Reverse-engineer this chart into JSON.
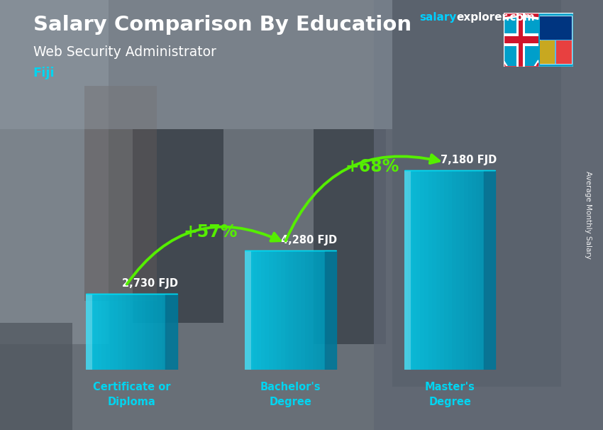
{
  "title": "Salary Comparison By Education",
  "subtitle": "Web Security Administrator",
  "country": "Fiji",
  "site_salary": "salary",
  "site_rest": "explorer.com",
  "ylabel": "Average Monthly Salary",
  "categories": [
    "Certificate or\nDiploma",
    "Bachelor's\nDegree",
    "Master's\nDegree"
  ],
  "values": [
    2730,
    4280,
    7180
  ],
  "value_labels": [
    "2,730 FJD",
    "4,280 FJD",
    "7,180 FJD"
  ],
  "pct_labels": [
    "+57%",
    "+68%"
  ],
  "bar_front_color": "#00c8e8",
  "bar_side_color": "#0077aa",
  "bar_top_color": "#00e0ff",
  "bg_light": "#b0b8c0",
  "bg_mid": "#909aa5",
  "bg_dark": "#6a7580",
  "text_color_white": "#ffffff",
  "text_color_cyan": "#00d4f0",
  "arrow_color": "#55ee00",
  "title_color": "#ffffff",
  "site_color_salary": "#00cfff",
  "site_color_rest": "#ffffff",
  "figsize": [
    8.5,
    6.06
  ],
  "dpi": 100
}
